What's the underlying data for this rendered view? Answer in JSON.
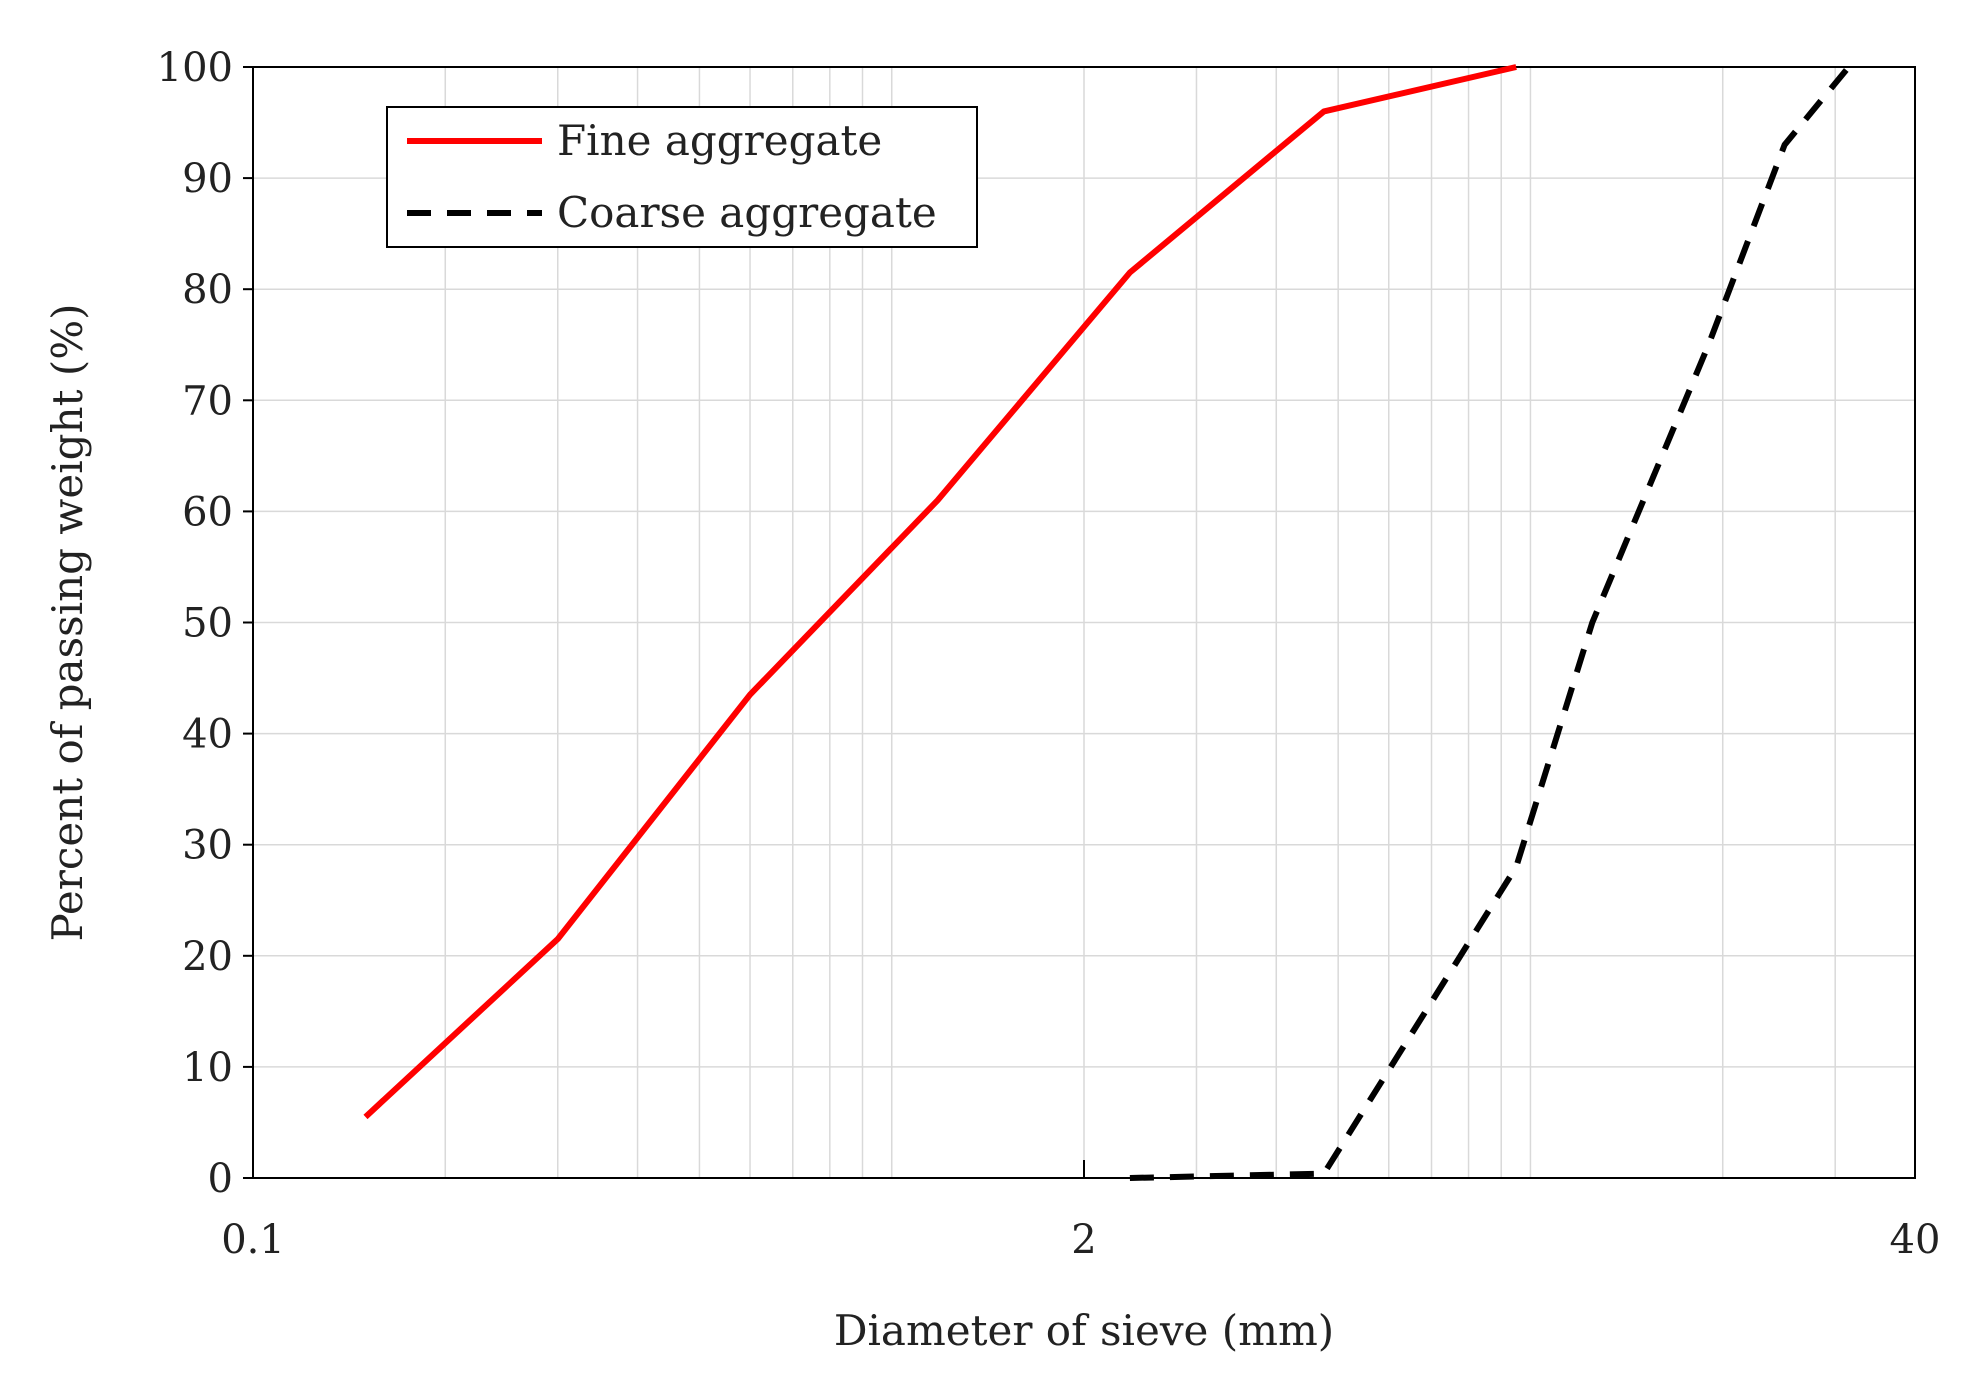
{
  "chart_data": {
    "type": "line",
    "xlabel": "Diameter of sieve (mm)",
    "ylabel": "Percent of passing weight (%)",
    "x_scale": "log",
    "xlim": [
      0.1,
      40
    ],
    "ylim": [
      0,
      100
    ],
    "x_ticks": [
      0.1,
      2,
      40
    ],
    "x_tick_labels": [
      "0.1",
      "2",
      "40"
    ],
    "y_ticks": [
      0,
      10,
      20,
      30,
      40,
      50,
      60,
      70,
      80,
      90,
      100
    ],
    "y_tick_labels": [
      "0",
      "10",
      "20",
      "30",
      "40",
      "50",
      "60",
      "70",
      "80",
      "90",
      "100"
    ],
    "grid": true,
    "legend_position": "top-left",
    "series": [
      {
        "name": "Fine aggregate",
        "color": "#ff0000",
        "dash": "solid",
        "points": [
          {
            "x": 0.15,
            "y": 5.5
          },
          {
            "x": 0.3,
            "y": 21.5
          },
          {
            "x": 0.6,
            "y": 43.5
          },
          {
            "x": 1.18,
            "y": 61
          },
          {
            "x": 2.36,
            "y": 81.5
          },
          {
            "x": 4.75,
            "y": 96
          },
          {
            "x": 9.5,
            "y": 100
          }
        ]
      },
      {
        "name": "Coarse aggregate",
        "color": "#000000",
        "dash": "dashed",
        "points": [
          {
            "x": 2.36,
            "y": 0
          },
          {
            "x": 4.75,
            "y": 0.4
          },
          {
            "x": 9.5,
            "y": 28
          },
          {
            "x": 12.5,
            "y": 50
          },
          {
            "x": 19,
            "y": 75
          },
          {
            "x": 25,
            "y": 93
          },
          {
            "x": 31.5,
            "y": 100
          }
        ]
      }
    ]
  }
}
